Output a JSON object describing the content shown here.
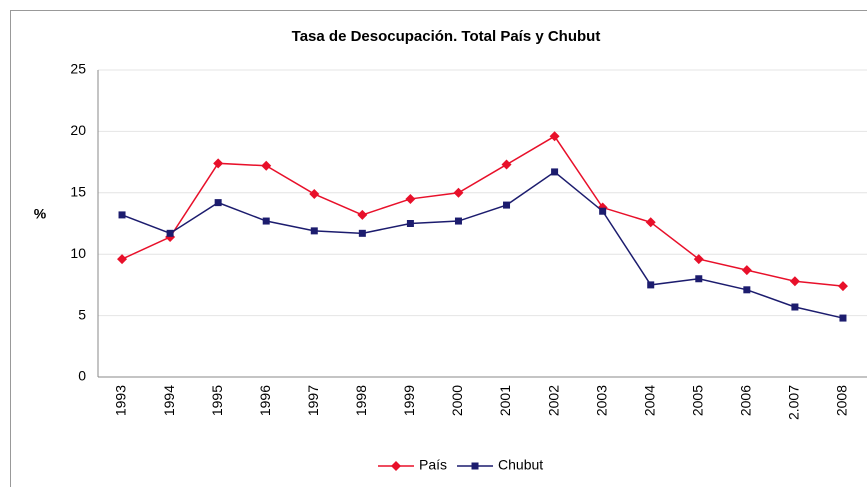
{
  "chart_data": {
    "type": "line",
    "title": "Tasa de Desocupación. Total País y Chubut",
    "ylabel": "%",
    "categories": [
      "1993",
      "1994",
      "1995",
      "1996",
      "1997",
      "1998",
      "1999",
      "2000",
      "2001",
      "2002",
      "2003",
      "2004",
      "2005",
      "2006",
      "2.007",
      "2008"
    ],
    "series": [
      {
        "name": "País",
        "color": "#e8102a",
        "marker": "diamond",
        "values": [
          9.6,
          11.4,
          17.4,
          17.2,
          14.9,
          13.2,
          14.5,
          15.0,
          17.3,
          19.6,
          13.8,
          12.6,
          9.6,
          8.7,
          7.8,
          7.4
        ]
      },
      {
        "name": "Chubut",
        "color": "#1c1c6e",
        "marker": "square",
        "values": [
          13.2,
          11.7,
          14.2,
          12.7,
          11.9,
          11.7,
          12.5,
          12.7,
          14.0,
          16.7,
          13.5,
          7.5,
          8.0,
          7.1,
          5.7,
          4.8
        ]
      }
    ],
    "ylim": [
      0,
      25
    ],
    "yticks": [
      0,
      5,
      10,
      15,
      20,
      25
    ],
    "grid": true,
    "legend": "bottom"
  }
}
